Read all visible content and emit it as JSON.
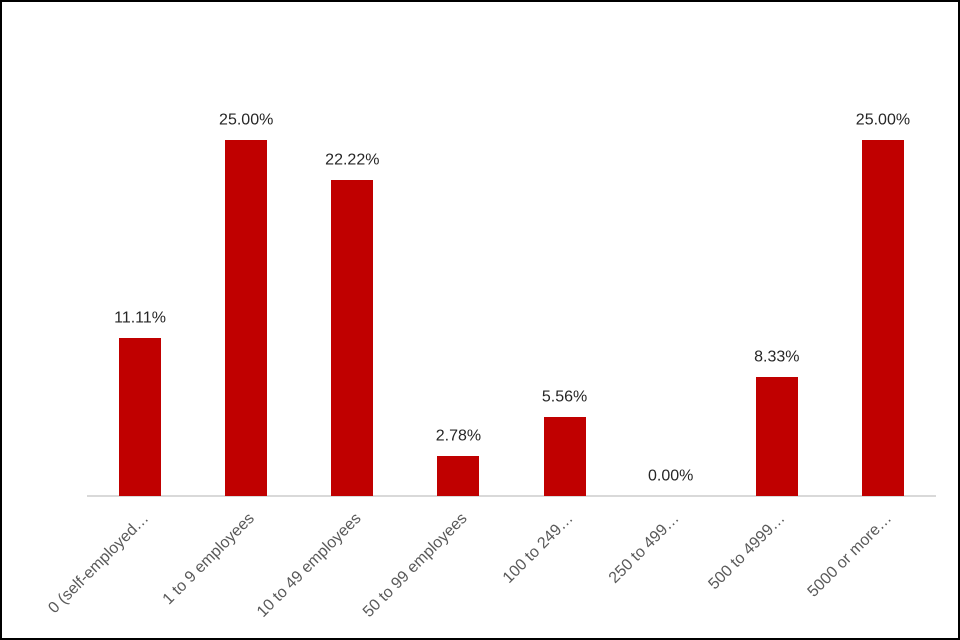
{
  "chart_data": {
    "type": "bar",
    "title": "",
    "xlabel": "",
    "ylabel": "",
    "series_name": "",
    "categories": [
      "0 (self-employed…",
      "1 to 9 employees",
      "10 to 49 employees",
      "50 to 99 employees",
      "100 to 249…",
      "250 to 499…",
      "500 to 4999…",
      "5000 or more…"
    ],
    "values": [
      11.11,
      25.0,
      22.22,
      2.78,
      5.56,
      0.0,
      8.33,
      25.0
    ],
    "value_labels": [
      "11.11%",
      "25.00%",
      "22.22%",
      "2.78%",
      "5.56%",
      "0.00%",
      "8.33%",
      "25.00%"
    ],
    "ylim": [
      0,
      30
    ],
    "grid": false,
    "legend_position": "none",
    "y_axis_visible": false,
    "data_labels_position": "outside-end",
    "category_label_rotation_deg": 45,
    "colors": {
      "bar": "#c00000",
      "axis_line": "#d9d9d9",
      "data_label_text": "#262626",
      "category_label_text": "#595959",
      "background": "#ffffff",
      "frame_border": "#000000"
    }
  }
}
